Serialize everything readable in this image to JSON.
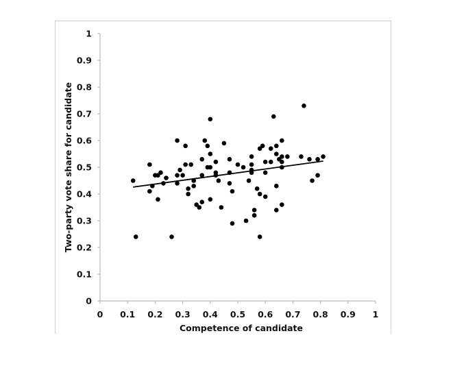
{
  "chart_data": {
    "type": "scatter",
    "title": "",
    "xlabel": "Competence of candidate",
    "ylabel": "Two-party vote share for candidate",
    "xlim": [
      0,
      1
    ],
    "ylim": [
      0,
      1
    ],
    "xticks": [
      "0",
      "0.1",
      "0.2",
      "0.3",
      "0.4",
      "0.5",
      "0.6",
      "0.7",
      "0.8",
      "0.9",
      "1"
    ],
    "yticks": [
      "0",
      "0.1",
      "0.2",
      "0.3",
      "0.4",
      "0.5",
      "0.6",
      "0.7",
      "0.8",
      "0.9",
      "1"
    ],
    "grid": false,
    "legend": null,
    "marker_color": "#000000",
    "axis_color": "#bbbbbb",
    "trendline": {
      "type": "linear",
      "x": [
        0.12,
        0.81
      ],
      "y": [
        0.426,
        0.523
      ],
      "color": "#000000"
    },
    "points": [
      [
        0.12,
        0.45
      ],
      [
        0.13,
        0.24
      ],
      [
        0.18,
        0.51
      ],
      [
        0.18,
        0.41
      ],
      [
        0.19,
        0.43
      ],
      [
        0.2,
        0.47
      ],
      [
        0.21,
        0.47
      ],
      [
        0.21,
        0.38
      ],
      [
        0.22,
        0.48
      ],
      [
        0.23,
        0.44
      ],
      [
        0.24,
        0.46
      ],
      [
        0.26,
        0.24
      ],
      [
        0.28,
        0.6
      ],
      [
        0.28,
        0.47
      ],
      [
        0.28,
        0.44
      ],
      [
        0.29,
        0.49
      ],
      [
        0.3,
        0.47
      ],
      [
        0.31,
        0.58
      ],
      [
        0.31,
        0.51
      ],
      [
        0.32,
        0.42
      ],
      [
        0.32,
        0.4
      ],
      [
        0.33,
        0.51
      ],
      [
        0.34,
        0.45
      ],
      [
        0.34,
        0.43
      ],
      [
        0.35,
        0.36
      ],
      [
        0.36,
        0.35
      ],
      [
        0.37,
        0.53
      ],
      [
        0.37,
        0.47
      ],
      [
        0.37,
        0.37
      ],
      [
        0.38,
        0.6
      ],
      [
        0.39,
        0.58
      ],
      [
        0.39,
        0.5
      ],
      [
        0.4,
        0.68
      ],
      [
        0.4,
        0.55
      ],
      [
        0.4,
        0.5
      ],
      [
        0.4,
        0.38
      ],
      [
        0.42,
        0.52
      ],
      [
        0.42,
        0.48
      ],
      [
        0.42,
        0.47
      ],
      [
        0.43,
        0.45
      ],
      [
        0.44,
        0.35
      ],
      [
        0.45,
        0.59
      ],
      [
        0.47,
        0.53
      ],
      [
        0.47,
        0.48
      ],
      [
        0.47,
        0.44
      ],
      [
        0.48,
        0.41
      ],
      [
        0.48,
        0.29
      ],
      [
        0.5,
        0.51
      ],
      [
        0.52,
        0.5
      ],
      [
        0.53,
        0.3
      ],
      [
        0.54,
        0.45
      ],
      [
        0.55,
        0.54
      ],
      [
        0.55,
        0.51
      ],
      [
        0.55,
        0.49
      ],
      [
        0.55,
        0.48
      ],
      [
        0.56,
        0.34
      ],
      [
        0.56,
        0.32
      ],
      [
        0.57,
        0.42
      ],
      [
        0.58,
        0.57
      ],
      [
        0.58,
        0.4
      ],
      [
        0.58,
        0.24
      ],
      [
        0.59,
        0.58
      ],
      [
        0.6,
        0.52
      ],
      [
        0.6,
        0.48
      ],
      [
        0.6,
        0.39
      ],
      [
        0.62,
        0.57
      ],
      [
        0.62,
        0.52
      ],
      [
        0.63,
        0.69
      ],
      [
        0.64,
        0.58
      ],
      [
        0.64,
        0.55
      ],
      [
        0.64,
        0.43
      ],
      [
        0.64,
        0.34
      ],
      [
        0.65,
        0.53
      ],
      [
        0.66,
        0.6
      ],
      [
        0.66,
        0.54
      ],
      [
        0.66,
        0.52
      ],
      [
        0.66,
        0.5
      ],
      [
        0.66,
        0.36
      ],
      [
        0.68,
        0.54
      ],
      [
        0.73,
        0.54
      ],
      [
        0.74,
        0.73
      ],
      [
        0.76,
        0.53
      ],
      [
        0.77,
        0.45
      ],
      [
        0.79,
        0.53
      ],
      [
        0.79,
        0.47
      ],
      [
        0.81,
        0.54
      ]
    ]
  }
}
